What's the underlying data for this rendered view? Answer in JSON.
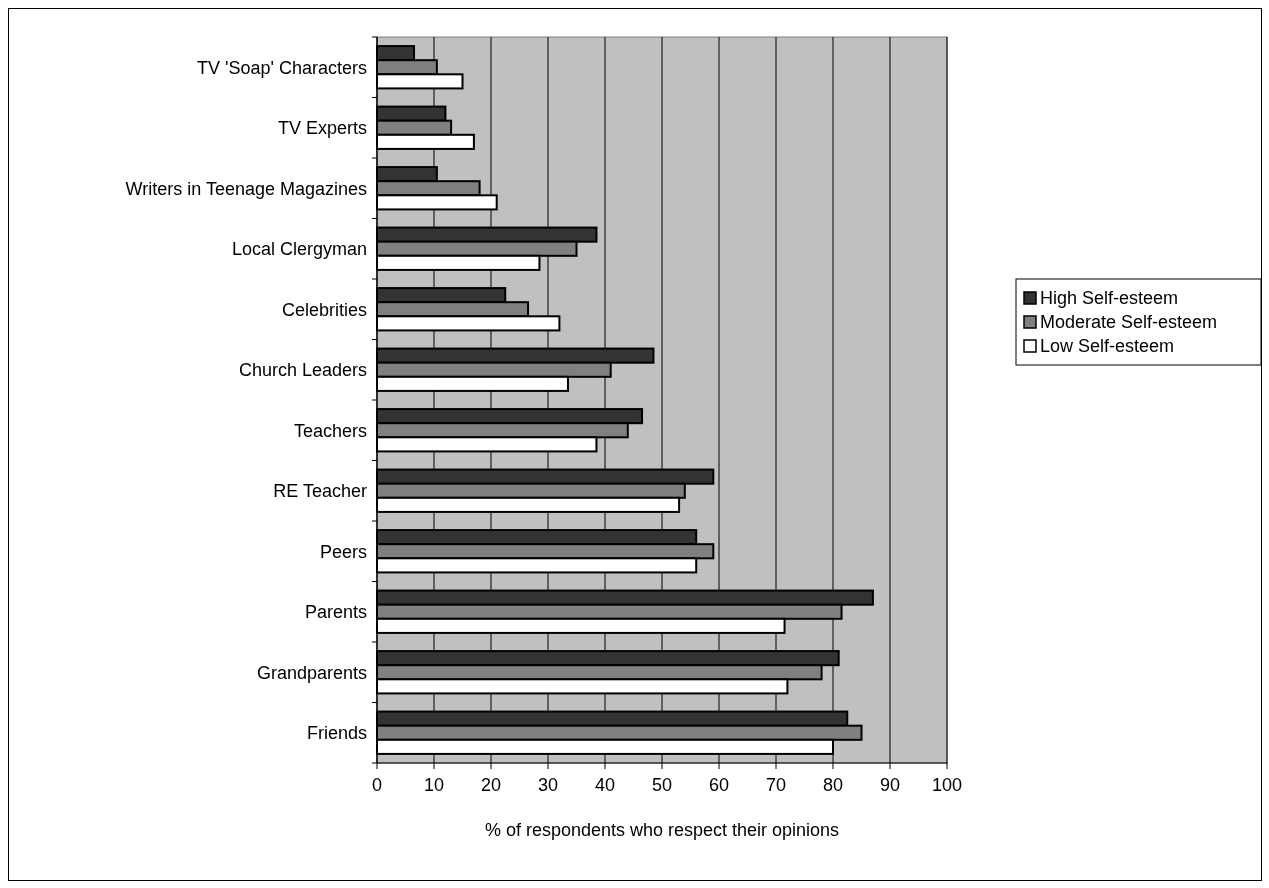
{
  "chart_data": {
    "type": "bar",
    "orientation": "horizontal",
    "xlabel": "% of respondents who respect their opinions",
    "categories": [
      "TV 'Soap' Characters",
      "TV Experts",
      "Writers in Teenage Magazines",
      "Local Clergyman",
      "Celebrities",
      "Church Leaders",
      "Teachers",
      "RE Teacher",
      "Peers",
      "Parents",
      "Grandparents",
      "Friends"
    ],
    "series": [
      {
        "name": "High Self-esteem",
        "color": "#333333",
        "values": [
          6.5,
          12,
          10.5,
          38.5,
          22.5,
          48.5,
          46.5,
          59,
          56,
          87,
          81,
          82.5
        ]
      },
      {
        "name": "Moderate Self-esteem",
        "color": "#808080",
        "values": [
          10.5,
          13,
          18,
          35,
          26.5,
          41,
          44,
          54,
          59,
          81.5,
          78,
          85
        ]
      },
      {
        "name": "Low Self-esteem",
        "color": "#ffffff",
        "values": [
          15,
          17,
          21,
          28.5,
          32,
          33.5,
          38.5,
          53,
          56,
          71.5,
          72,
          80
        ]
      }
    ],
    "xlim": [
      0,
      100
    ],
    "xticks": [
      0,
      10,
      20,
      30,
      40,
      50,
      60,
      70,
      80,
      90,
      100
    ],
    "grid": "x",
    "legend": "right"
  }
}
